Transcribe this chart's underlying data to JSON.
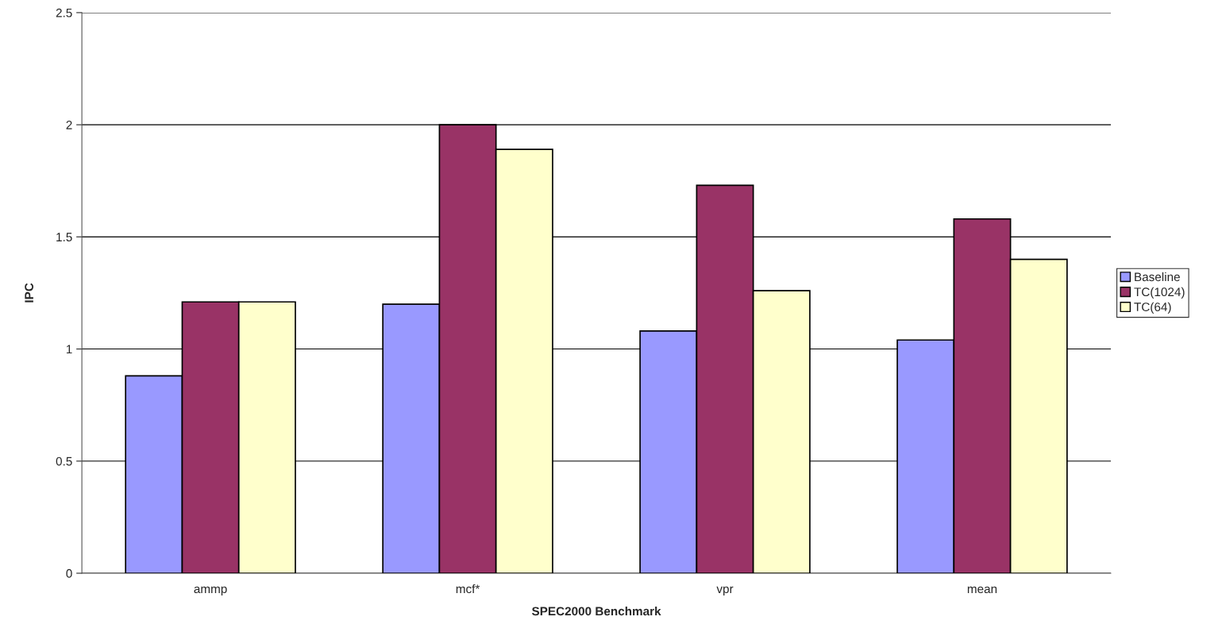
{
  "chart_data": {
    "type": "bar",
    "xlabel": "SPEC2000 Benchmark",
    "ylabel": "IPC",
    "categories": [
      "ammp",
      "mcf*",
      "vpr",
      "mean"
    ],
    "series": [
      {
        "name": "Baseline",
        "color": "#9999ff",
        "values": [
          0.88,
          1.2,
          1.08,
          1.04
        ]
      },
      {
        "name": "TC(1024)",
        "color": "#993366",
        "values": [
          1.21,
          2.0,
          1.73,
          1.58
        ]
      },
      {
        "name": "TC(64)",
        "color": "#ffffcc",
        "values": [
          1.21,
          1.89,
          1.26,
          1.4
        ]
      }
    ],
    "ylim": [
      0,
      2.5
    ],
    "yticks": [
      0,
      0.5,
      1,
      1.5,
      2,
      2.5
    ],
    "grid": "y",
    "legend": "right"
  }
}
